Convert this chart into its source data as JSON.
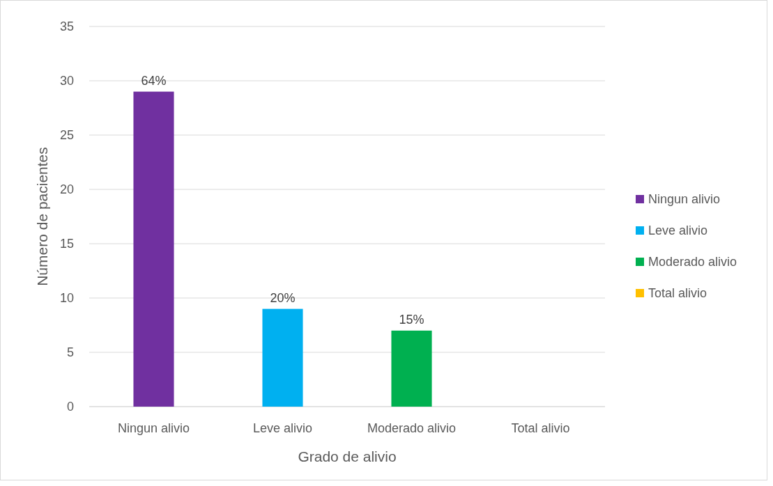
{
  "chart_data": {
    "type": "bar",
    "stacked": true,
    "xlabel": "Grado de alivio",
    "ylabel": "Número de pacientes",
    "categories": [
      "Ningun alivio",
      "Leve alivio",
      "Moderado alivio",
      "Total alivio"
    ],
    "series": [
      {
        "name": "Ningun alivio",
        "color": "#7030a0",
        "values": [
          29,
          null,
          null,
          null
        ]
      },
      {
        "name": "Leve alivio",
        "color": "#00b0f0",
        "values": [
          null,
          9,
          null,
          null
        ]
      },
      {
        "name": "Moderado alivio",
        "color": "#00b050",
        "values": [
          null,
          null,
          7,
          null
        ]
      },
      {
        "name": "Total alivio",
        "color": "#ffc000",
        "values": [
          null,
          null,
          null,
          0
        ]
      }
    ],
    "annotations": [
      {
        "text": "64%",
        "x": "Ningun alivio",
        "y": 29
      },
      {
        "text": "20%",
        "x": "Leve alivio",
        "y": 9
      },
      {
        "text": "15%",
        "x": "Moderado alivio",
        "y": 7
      }
    ],
    "ylim": [
      0,
      35
    ],
    "yticks": [
      0,
      5,
      10,
      15,
      20,
      25,
      30,
      35
    ],
    "grid": "y",
    "legend": "right"
  }
}
